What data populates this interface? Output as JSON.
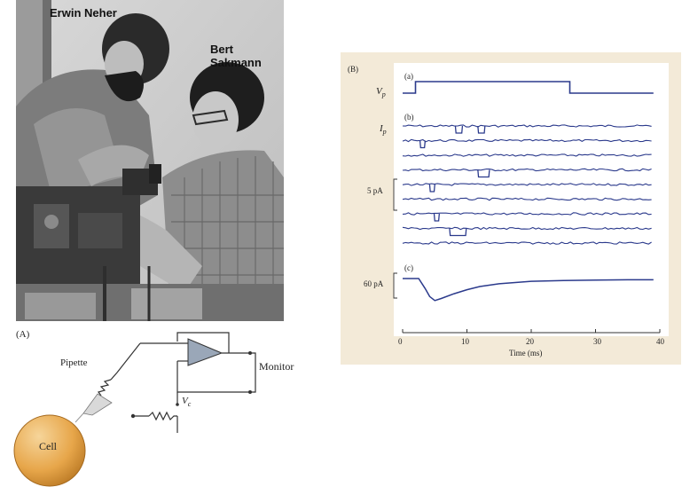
{
  "photo": {
    "caption_left": "Erwin Neher",
    "caption_right": "Bert Sakmann"
  },
  "panel_a": {
    "label": "(A)",
    "pipette_label": "Pipette",
    "monitor_label": "Monitor",
    "vc_label": "V",
    "vc_sub": "c",
    "cell_label": "Cell"
  },
  "panel_b": {
    "label": "(B)",
    "sub_a": "(a)",
    "sub_b": "(b)",
    "sub_c": "(c)",
    "vp_label": "V",
    "vp_sub": "p",
    "ip_label": "I",
    "ip_sub": "p",
    "scale_small": "5 pA",
    "scale_large": "60 pA",
    "xlabel": "Time (ms)",
    "xticks": [
      "0",
      "10",
      "20",
      "30",
      "40"
    ]
  },
  "colors": {
    "trace": "#2b3a8c",
    "cell": "#e7a64a",
    "amplifier": "#9aa7b8",
    "panel_bg": "#f3ead8"
  },
  "chart_data": {
    "type": "line",
    "xlabel": "Time (ms)",
    "xlim": [
      0,
      40
    ],
    "xticks": [
      0,
      10,
      20,
      30,
      40
    ],
    "series": [
      {
        "id": "voltage-step",
        "x": [
          0,
          2,
          2,
          26,
          26,
          39
        ],
        "y": [
          0,
          0,
          1,
          1,
          0,
          0
        ]
      },
      {
        "id": "single-channel-sweeps",
        "sweep_count": 9,
        "openings_ms": [
          [
            8.3,
            9.2
          ],
          [
            11.8,
            12.7
          ],
          [
            2.8,
            3.4
          ],
          [
            11.8,
            13.4
          ],
          [
            4.3,
            4.9
          ],
          [
            5.0,
            5.6
          ],
          [
            7.4,
            9.8
          ]
        ]
      },
      {
        "id": "ensemble-average",
        "x": [
          0,
          2.5,
          3.5,
          4.2,
          5,
          6,
          8,
          10,
          12,
          15,
          20,
          25,
          30,
          35,
          39
        ],
        "y": [
          0,
          0,
          -25,
          -45,
          -55,
          -50,
          -38,
          -28,
          -20,
          -13,
          -7,
          -5,
          -4,
          -3,
          -3
        ]
      }
    ]
  }
}
